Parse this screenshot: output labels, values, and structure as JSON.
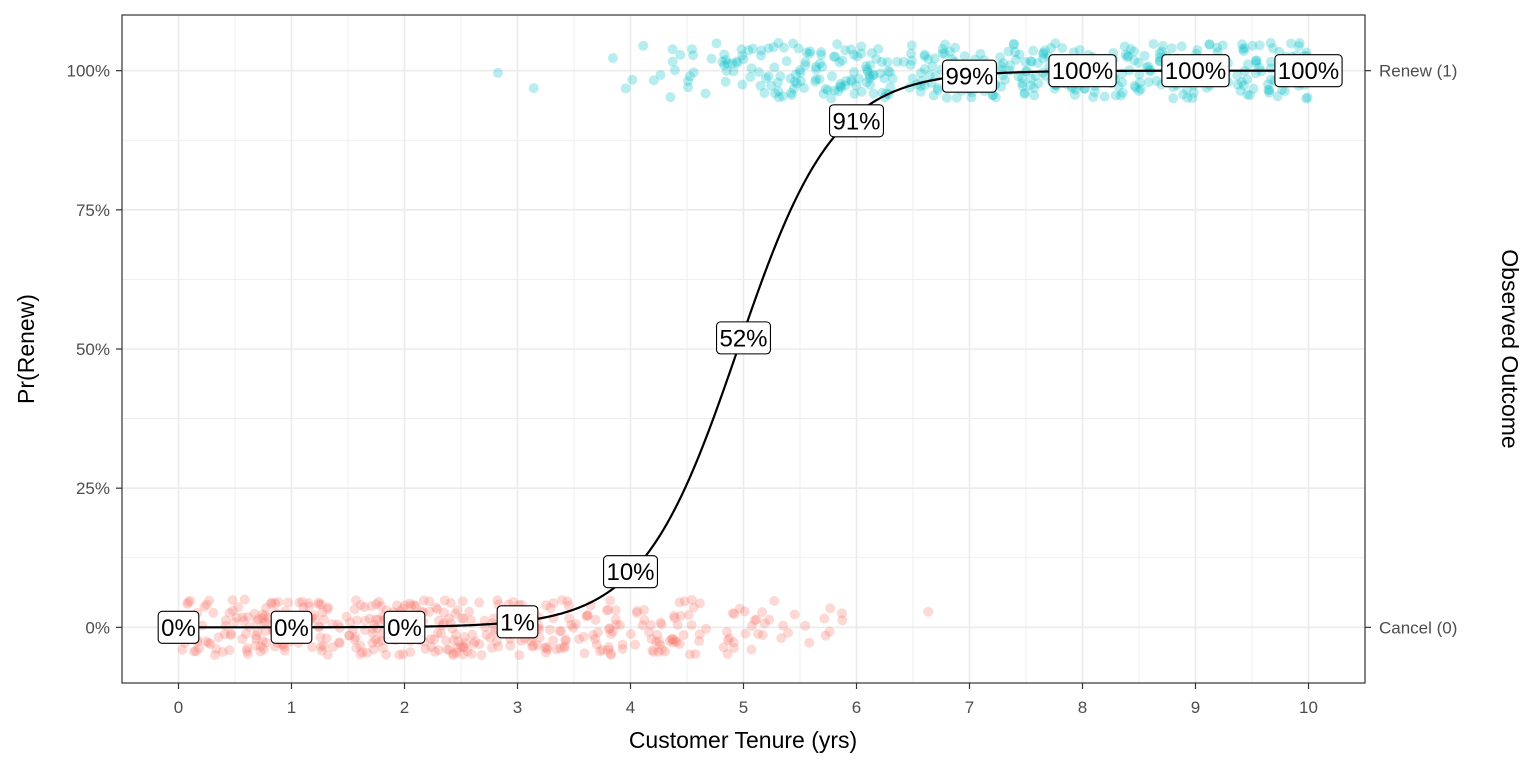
{
  "chart_data": {
    "type": "scatter",
    "title": "",
    "xlabel": "Customer Tenure (yrs)",
    "ylabel": "Pr(Renew)",
    "y2label": "Observed Outcome",
    "xlim": [
      -0.5,
      10.5
    ],
    "ylim": [
      -0.1,
      1.1
    ],
    "x_ticks": [
      "0",
      "1",
      "2",
      "3",
      "4",
      "5",
      "6",
      "7",
      "8",
      "9",
      "10"
    ],
    "y_ticks": [
      "0%",
      "25%",
      "50%",
      "75%",
      "100%"
    ],
    "y2_ticks": [
      "Cancel (0)",
      "Renew (1)"
    ],
    "grid": true,
    "colors": {
      "cancel": "#F8766D",
      "renew": "#00BFC4",
      "curve": "#000000",
      "grid": "#EBEBEB",
      "panel_border": "#333333"
    },
    "logistic_curve": {
      "description_source": "fitted probability curve",
      "midpoint": 4.95,
      "slope": 2.35
    },
    "series": [
      {
        "name": "Cancel (0)",
        "outcome": 0,
        "tenure_range": [
          0,
          6.9
        ],
        "jitter_range": [
          -0.05,
          0.05
        ],
        "approx_points": 300
      },
      {
        "name": "Renew (1)",
        "outcome": 1,
        "tenure_range": [
          2.5,
          9.95
        ],
        "jitter_range": [
          -0.05,
          0.05
        ],
        "approx_points": 520
      }
    ],
    "point_labels": [
      {
        "x": 0,
        "y": 0.0,
        "text": "0%"
      },
      {
        "x": 1,
        "y": 0.0,
        "text": "0%"
      },
      {
        "x": 2,
        "y": 0.0,
        "text": "0%"
      },
      {
        "x": 3,
        "y": 0.01,
        "text": "1%"
      },
      {
        "x": 4,
        "y": 0.1,
        "text": "10%"
      },
      {
        "x": 5,
        "y": 0.52,
        "text": "52%"
      },
      {
        "x": 6,
        "y": 0.91,
        "text": "91%"
      },
      {
        "x": 7,
        "y": 0.99,
        "text": "99%"
      },
      {
        "x": 8,
        "y": 1.0,
        "text": "100%"
      },
      {
        "x": 9,
        "y": 1.0,
        "text": "100%"
      },
      {
        "x": 10,
        "y": 1.0,
        "text": "100%"
      }
    ]
  }
}
